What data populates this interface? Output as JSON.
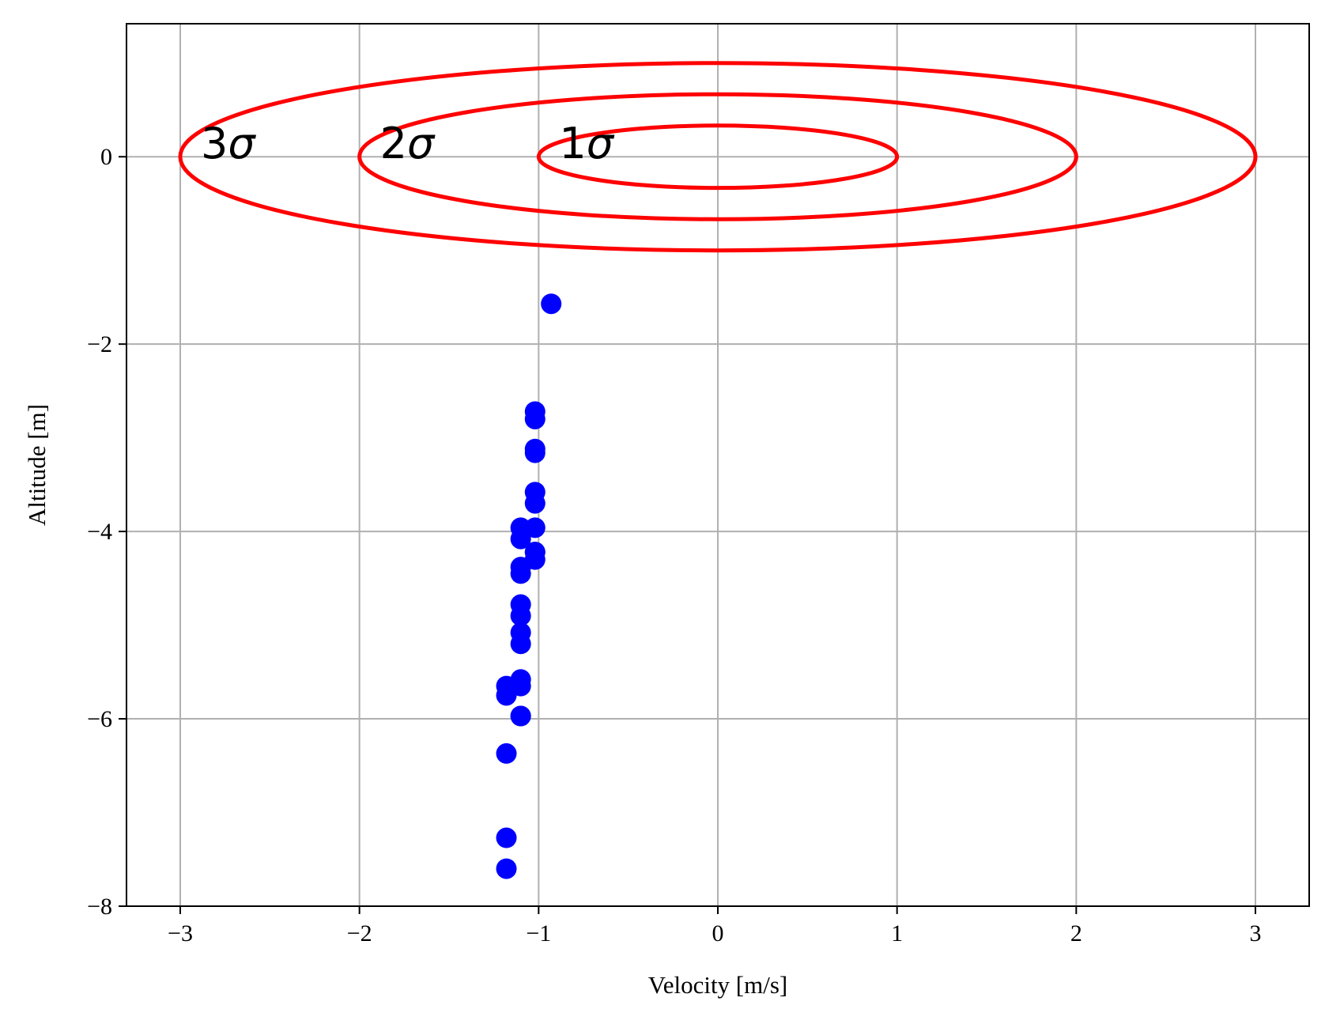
{
  "chart_data": {
    "type": "scatter",
    "title": "",
    "xlabel": "Velocity [m/s]",
    "ylabel": "Altitude [m]",
    "xlim": [
      -3.3,
      3.3
    ],
    "ylim": [
      -8.0,
      1.42
    ],
    "xticks": [
      -3,
      -2,
      -1,
      0,
      1,
      2,
      3
    ],
    "xtick_labels": [
      "−3",
      "−2",
      "−1",
      "0",
      "1",
      "2",
      "3"
    ],
    "yticks": [
      -8,
      -6,
      -4,
      -2,
      0
    ],
    "ytick_labels": [
      "−8",
      "−6",
      "−4",
      "−2",
      "0"
    ],
    "grid": true,
    "colors": {
      "ellipse": "#ff0000",
      "points": "#0000ff",
      "grid": "#b0b0b0",
      "axes": "#000000"
    },
    "ellipses": [
      {
        "label_num": "1",
        "label_greek": "σ",
        "center": [
          0,
          0
        ],
        "rx": 1,
        "ry": 0.333
      },
      {
        "label_num": "2",
        "label_greek": "σ",
        "center": [
          0,
          0
        ],
        "rx": 2,
        "ry": 0.667
      },
      {
        "label_num": "3",
        "label_greek": "σ",
        "center": [
          0,
          0
        ],
        "rx": 3,
        "ry": 1.0
      }
    ],
    "points": {
      "x": [
        -0.93,
        -1.02,
        -1.02,
        -1.02,
        -1.02,
        -1.02,
        -1.02,
        -1.02,
        -1.02,
        -1.1,
        -1.1,
        -1.02,
        -1.02,
        -1.1,
        -1.1,
        -1.1,
        -1.1,
        -1.1,
        -1.1,
        -1.1,
        -1.1,
        -1.18,
        -1.18,
        -1.1,
        -1.1,
        -1.18,
        -1.18,
        -1.18
      ],
      "y": [
        -1.57,
        -2.72,
        -2.8,
        -3.12,
        -3.16,
        -3.58,
        -3.7,
        -3.96,
        -4.22,
        -3.96,
        -4.08,
        -4.22,
        -4.3,
        -4.38,
        -4.45,
        -4.78,
        -4.9,
        -5.08,
        -5.2,
        -5.58,
        -5.65,
        -5.65,
        -5.75,
        -5.97,
        -5.97,
        -6.37,
        -7.27,
        -7.6
      ]
    }
  }
}
